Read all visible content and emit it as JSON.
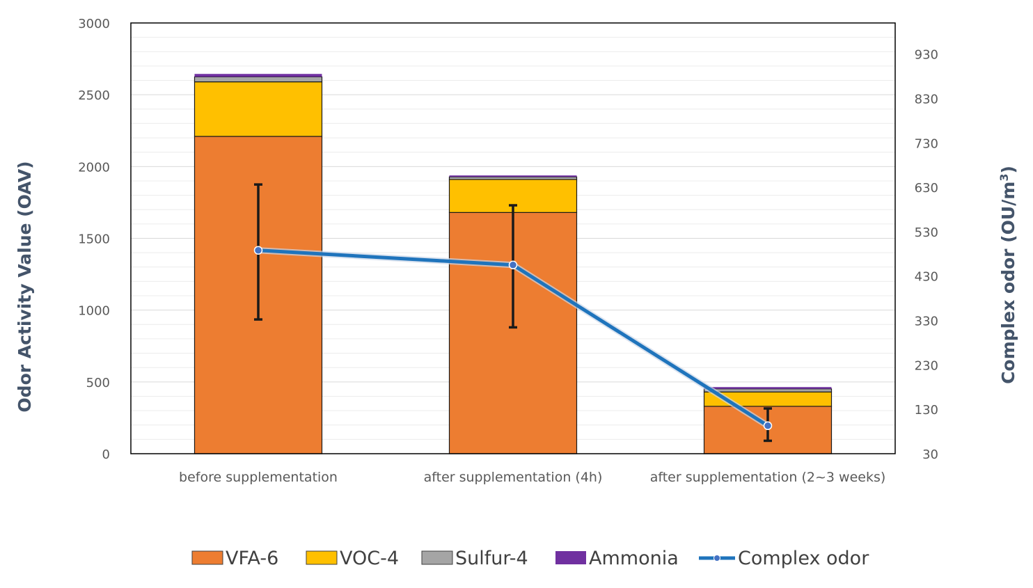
{
  "chart_data": {
    "type": "bar",
    "stacked": true,
    "categories": [
      "before supplementation",
      "after supplementation (4h)",
      "after supplementation (2~3 weeks)"
    ],
    "series": [
      {
        "name": "VFA-6",
        "color": "#ed7d31",
        "values": [
          2210,
          1680,
          330
        ]
      },
      {
        "name": "VOC-4",
        "color": "#ffc000",
        "values": [
          380,
          230,
          100
        ]
      },
      {
        "name": "Sulfur-4",
        "color": "#a5a5a5",
        "values": [
          35,
          18,
          22
        ]
      },
      {
        "name": "Ammonia",
        "color": "#7030a0",
        "values": [
          20,
          10,
          12
        ]
      }
    ],
    "line_series": {
      "name": "Complex odor",
      "color": "#1f74bc",
      "axis": "right",
      "values": [
        488,
        455,
        93
      ],
      "error_low": [
        935,
        880,
        90
      ],
      "error_high": [
        1875,
        1730,
        315
      ],
      "error_units": "left"
    },
    "y_left": {
      "label": "Odor Activity Value (OAV)",
      "min": 0,
      "max": 3000,
      "ticks": [
        "0",
        "500",
        "1000",
        "1500",
        "2000",
        "2500",
        "3000"
      ]
    },
    "y_right": {
      "label_main": "Complex odor (OU/m",
      "label_sup": "3",
      "label_end": ")",
      "min": 30,
      "max": 1000,
      "ticks": [
        "30",
        "130",
        "230",
        "330",
        "430",
        "530",
        "630",
        "730",
        "830",
        "930"
      ]
    },
    "legend": {
      "position": "bottom",
      "items": [
        "VFA-6",
        "VOC-4",
        "Sulfur-4",
        "Ammonia",
        "Complex odor"
      ]
    },
    "grid": true
  }
}
